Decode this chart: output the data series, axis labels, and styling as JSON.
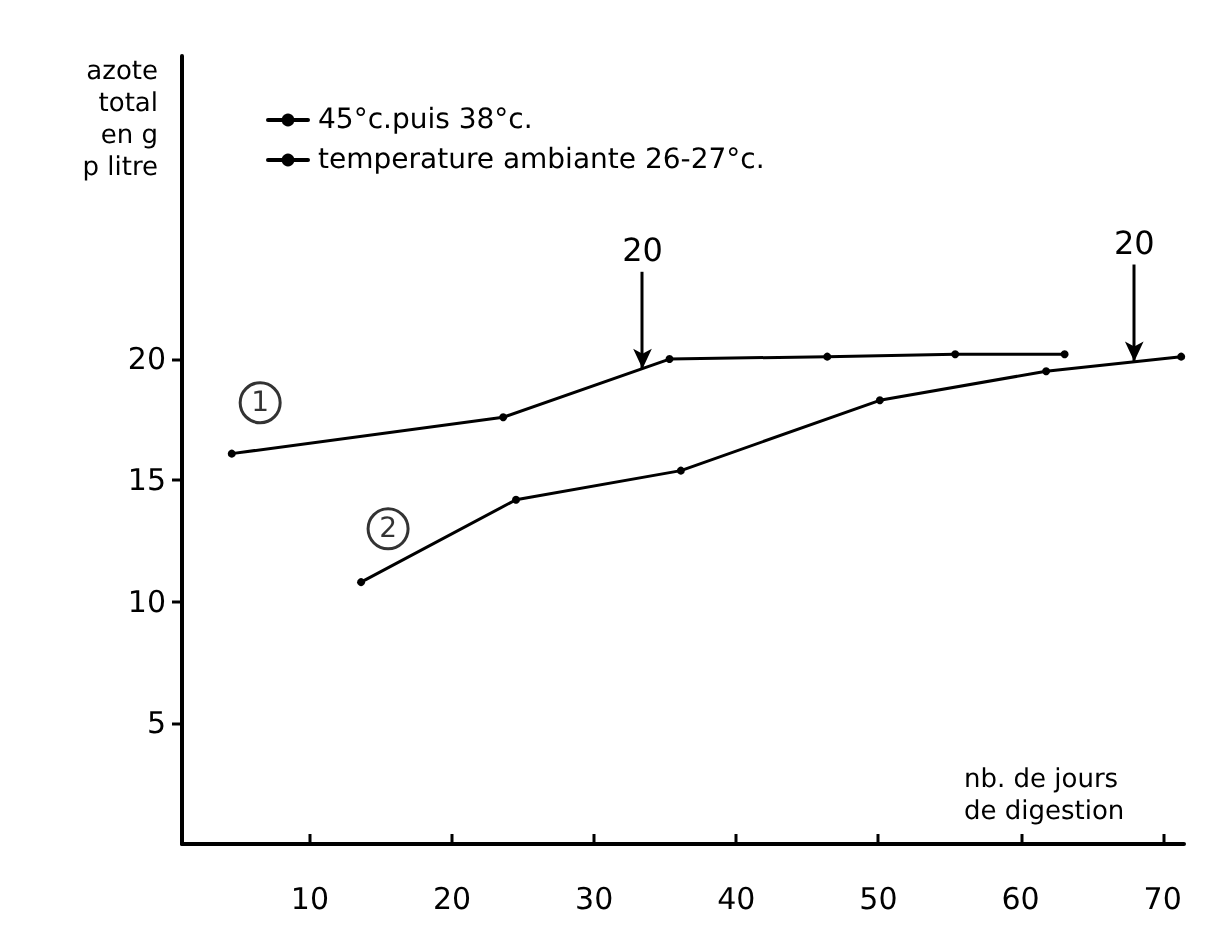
{
  "chart_data": {
    "type": "line",
    "xlabel": "nb. de jours\nde digestion",
    "ylabel": "azote\ntotal\nen g\np litre",
    "series": [
      {
        "name": "45°c.puis 38°c.",
        "color": "#000000",
        "x": [
          4.5,
          23.6,
          35.3,
          46.4,
          55.4,
          63.1
        ],
        "values": [
          16.1,
          17.6,
          20.0,
          20.1,
          20.2,
          20.2
        ]
      },
      {
        "name": "temperature ambiante 26-27°c.",
        "color": "#000000",
        "x": [
          13.6,
          24.5,
          36.1,
          50.1,
          61.8,
          71.3
        ],
        "values": [
          10.8,
          14.2,
          15.4,
          18.3,
          19.5,
          20.1
        ]
      }
    ],
    "annotations": [
      {
        "text": "20",
        "x": 33.4,
        "y": 19.6
      },
      {
        "text": "20",
        "x": 68,
        "y": 19.9
      },
      {
        "text": "1",
        "x": 6.5,
        "y": 18.2
      },
      {
        "text": "2",
        "x": 15.5,
        "y": 13.0
      }
    ],
    "xlim": [
      1,
      71.5
    ],
    "ylim": [
      0,
      32.5
    ],
    "xticks": [
      10,
      20,
      30,
      40,
      50,
      60,
      70
    ],
    "yticks": [
      5,
      10,
      15,
      20
    ],
    "legend": "top left",
    "grid": false,
    "marker": "circle",
    "line_style": "solid"
  }
}
